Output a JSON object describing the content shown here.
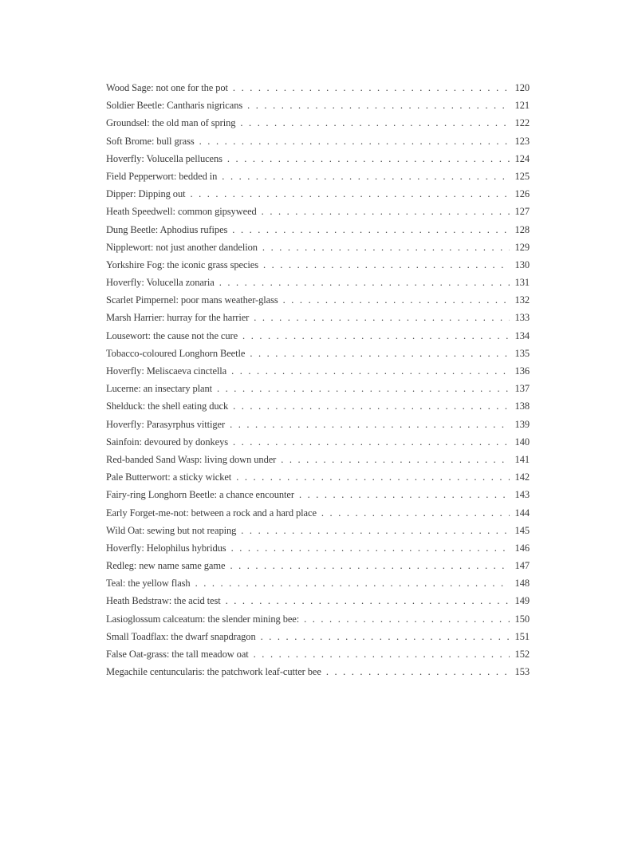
{
  "page": {
    "background_color": "#ffffff",
    "text_color": "#3a3a3a"
  },
  "toc": {
    "entries": [
      {
        "title": "Wood Sage: not one for the pot",
        "page": "120"
      },
      {
        "title": "Soldier Beetle: Cantharis nigricans",
        "page": "121"
      },
      {
        "title": "Groundsel: the old man of spring",
        "page": "122"
      },
      {
        "title": "Soft Brome: bull grass",
        "page": "123"
      },
      {
        "title": "Hoverfly: Volucella pellucens",
        "page": "124"
      },
      {
        "title": "Field Pepperwort: bedded in",
        "page": "125"
      },
      {
        "title": "Dipper: Dipping out",
        "page": "126"
      },
      {
        "title": "Heath Speedwell: common gipsyweed",
        "page": "127"
      },
      {
        "title": "Dung Beetle: Aphodius rufipes",
        "page": "128"
      },
      {
        "title": "Nipplewort: not just another dandelion",
        "page": "129"
      },
      {
        "title": "Yorkshire Fog: the iconic grass species",
        "page": "130"
      },
      {
        "title": "Hoverfly: Volucella zonaria",
        "page": "131"
      },
      {
        "title": "Scarlet Pimpernel: poor mans weather-glass",
        "page": "132"
      },
      {
        "title": "Marsh Harrier: hurray for the harrier",
        "page": "133"
      },
      {
        "title": "Lousewort: the cause not the cure",
        "page": "134"
      },
      {
        "title": "Tobacco-coloured Longhorn Beetle",
        "page": "135"
      },
      {
        "title": "Hoverfly: Meliscaeva cinctella",
        "page": "136"
      },
      {
        "title": "Lucerne: an insectary plant",
        "page": "137"
      },
      {
        "title": "Shelduck: the shell eating duck",
        "page": "138"
      },
      {
        "title": "Hoverfly: Parasyrphus vittiger",
        "page": "139"
      },
      {
        "title": "Sainfoin: devoured by donkeys",
        "page": "140"
      },
      {
        "title": "Red-banded Sand Wasp: living down under",
        "page": "141"
      },
      {
        "title": "Pale Butterwort: a sticky wicket",
        "page": "142"
      },
      {
        "title": "Fairy-ring Longhorn Beetle: a chance encounter",
        "page": "143"
      },
      {
        "title": "Early Forget-me-not: between a rock and a hard place",
        "page": "144"
      },
      {
        "title": "Wild Oat: sewing but not reaping",
        "page": "145"
      },
      {
        "title": "Hoverfly: Helophilus hybridus",
        "page": "146"
      },
      {
        "title": "Redleg: new name same game",
        "page": "147"
      },
      {
        "title": "Teal: the yellow flash",
        "page": "148"
      },
      {
        "title": "Heath Bedstraw: the acid test",
        "page": "149"
      },
      {
        "title": "Lasioglossum calceatum: the slender mining bee:",
        "page": "150"
      },
      {
        "title": "Small Toadflax: the dwarf snapdragon",
        "page": "151"
      },
      {
        "title": "False Oat-grass: the tall meadow oat",
        "page": "152"
      },
      {
        "title": "Megachile centuncularis: the patchwork leaf-cutter bee",
        "page": "153"
      }
    ]
  }
}
